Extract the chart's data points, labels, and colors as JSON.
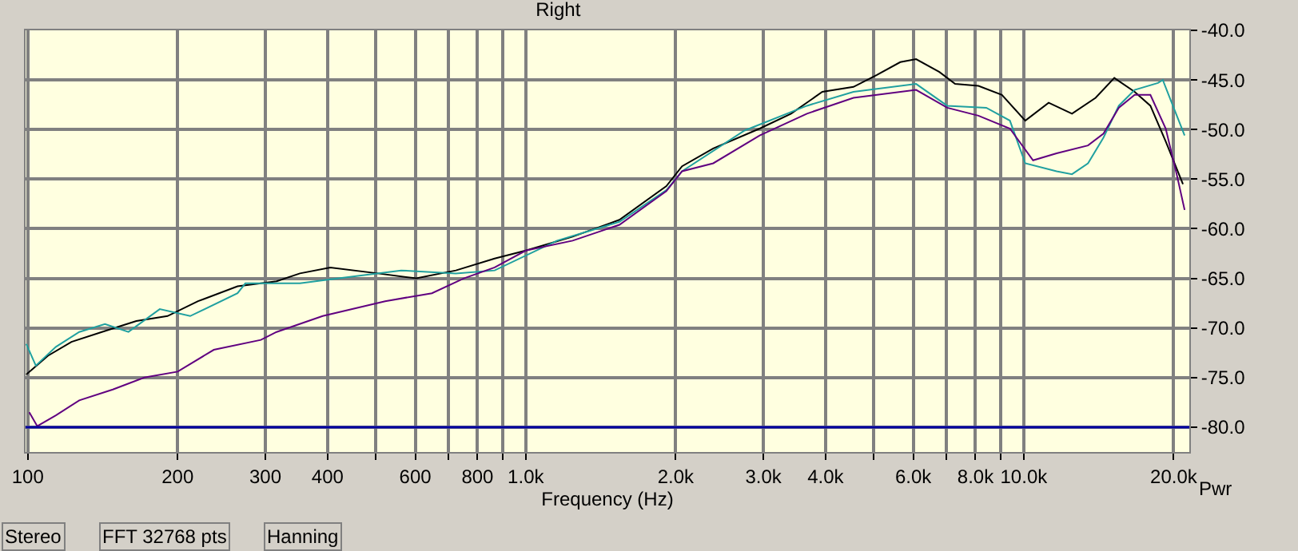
{
  "chart_data": {
    "type": "line",
    "title": "Right",
    "xlabel": "Frequency (Hz)",
    "ylabel": "Pwr",
    "log": "x",
    "grid": true,
    "marker": "none",
    "line_style": "solid",
    "xlim": [
      99,
      21500
    ],
    "ylim": [
      -82.5,
      -40
    ],
    "xticks": [
      {
        "value": 100,
        "label": "100"
      },
      200,
      300,
      400,
      {
        "value": 500,
        "label": null
      },
      600,
      {
        "value": 700,
        "label": null
      },
      800,
      {
        "value": 900,
        "label": null
      },
      {
        "value": 1000,
        "label": "1.0k"
      },
      {
        "value": 2000,
        "label": "2.0k"
      },
      {
        "value": 3000,
        "label": "3.0k"
      },
      {
        "value": 4000,
        "label": "4.0k"
      },
      {
        "value": 5000,
        "label": null
      },
      {
        "value": 6000,
        "label": "6.0k"
      },
      {
        "value": 7000,
        "label": null
      },
      {
        "value": 8000,
        "label": "8.0k"
      },
      {
        "value": 9000,
        "label": null
      },
      {
        "value": 10000,
        "label": "10.0k"
      },
      {
        "value": 20000,
        "label": "20.0k"
      }
    ],
    "yticks": [
      {
        "value": -40,
        "label": "-40.0"
      },
      {
        "value": -45,
        "label": "-45.0"
      },
      {
        "value": -50,
        "label": "-50.0"
      },
      {
        "value": -55,
        "label": "-55.0"
      },
      {
        "value": -60,
        "label": "-60.0"
      },
      {
        "value": -65,
        "label": "-65.0"
      },
      {
        "value": -70,
        "label": "-70.0"
      },
      {
        "value": -75,
        "label": "-75.0"
      },
      {
        "value": -80,
        "label": "-80.0"
      }
    ],
    "ref_lines": [
      {
        "axis": "y",
        "value": -80,
        "label": null,
        "color": "#0000a0"
      }
    ],
    "annotations": [
      "Stereo",
      "FFT 32768 pts",
      "Hanning"
    ],
    "series": [
      {
        "color": "#000000",
        "x": [
          99.3,
          109.8,
          122.4,
          142.9,
          165.2,
          190.8,
          219.8,
          263.8,
          316,
          352,
          405,
          505,
          603,
          724,
          866,
          1000,
          1242,
          1542,
          1916,
          2060,
          2380,
          2950,
          3410,
          3940,
          4550,
          5070,
          5650,
          6080,
          6770,
          7280,
          8110,
          9040,
          10070,
          11220,
          12500,
          13940,
          15200,
          16700,
          17960,
          19280,
          20880
        ],
        "values": [
          -74.7,
          -72.8,
          -71.4,
          -70.3,
          -69.3,
          -68.8,
          -67.3,
          -65.8,
          -65.3,
          -64.5,
          -63.9,
          -64.5,
          -65.0,
          -64.2,
          -63.0,
          -62.2,
          -60.8,
          -59.1,
          -55.7,
          -53.7,
          -51.9,
          -49.9,
          -48.4,
          -46.2,
          -45.7,
          -44.5,
          -43.2,
          -42.9,
          -44.2,
          -45.4,
          -45.6,
          -46.5,
          -49.1,
          -47.3,
          -48.4,
          -46.8,
          -44.8,
          -46.2,
          -47.6,
          -51.2,
          -55.5
        ]
      },
      {
        "color": "#20a0a0",
        "x": [
          99.3,
          103.8,
          113.9,
          126.9,
          142.9,
          159.3,
          184.1,
          211.9,
          263.8,
          273.5,
          352,
          421,
          562,
          724,
          866,
          1156,
          1542,
          1916,
          2060,
          2750,
          3670,
          4550,
          6080,
          7020,
          8410,
          9380,
          10070,
          11640,
          12500,
          13460,
          14460,
          15520,
          16700,
          18600,
          19020,
          20000,
          21040
        ],
        "values": [
          -71.6,
          -73.8,
          -71.9,
          -70.4,
          -69.6,
          -70.4,
          -68.1,
          -68.8,
          -66.5,
          -65.5,
          -65.5,
          -65.0,
          -64.2,
          -64.5,
          -64.2,
          -61.2,
          -59.3,
          -56.1,
          -54.2,
          -50.1,
          -47.6,
          -46.2,
          -45.4,
          -47.6,
          -47.8,
          -49.1,
          -53.4,
          -54.2,
          -54.5,
          -53.4,
          -50.8,
          -47.6,
          -46.0,
          -45.3,
          -45.0,
          -47.8,
          -50.6
        ]
      },
      {
        "color": "#600080",
        "x": [
          100.7,
          104.5,
          113.9,
          126.9,
          148.2,
          171.4,
          200,
          236.4,
          293.9,
          316,
          391,
          522,
          648,
          751,
          866,
          1000,
          1242,
          1542,
          1916,
          2060,
          2380,
          2950,
          3670,
          4550,
          6080,
          7020,
          8110,
          9380,
          10440,
          11640,
          13460,
          14460,
          15520,
          16700,
          17960,
          19280,
          20280,
          21040
        ],
        "values": [
          -78.5,
          -79.9,
          -78.8,
          -77.3,
          -76.2,
          -75.0,
          -74.4,
          -72.2,
          -71.2,
          -70.4,
          -68.8,
          -67.3,
          -66.5,
          -65.0,
          -63.9,
          -62.2,
          -61.2,
          -59.6,
          -56.2,
          -54.2,
          -53.4,
          -50.6,
          -48.4,
          -46.8,
          -46.0,
          -47.8,
          -48.6,
          -49.9,
          -53.1,
          -52.4,
          -51.6,
          -50.4,
          -47.8,
          -46.5,
          -46.5,
          -49.9,
          -54.5,
          -58.1
        ]
      }
    ]
  }
}
